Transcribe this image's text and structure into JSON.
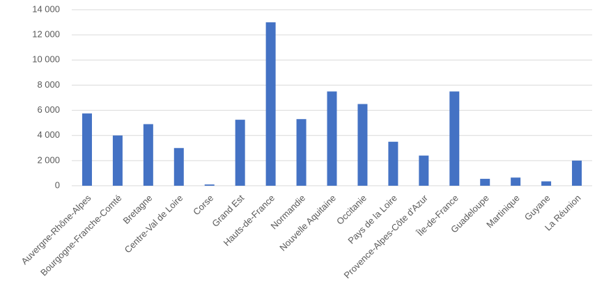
{
  "chart_data": {
    "type": "bar",
    "categories": [
      "Auvergne-Rhône-Alpes",
      "Bourgogne-Franche-Comté",
      "Bretagne",
      "Centre-Val de Loire",
      "Corse",
      "Grand Est",
      "Hauts-de-France",
      "Normandie",
      "Nouvelle Aquitaine",
      "Occitanie",
      "Pays de la Loire",
      "Provence-Alpes-Côte d'Azur",
      "Île-de-France",
      "Guadeloupe",
      "Martinique",
      "Guyane",
      "La Réunion"
    ],
    "values": [
      5750,
      4000,
      4900,
      3000,
      100,
      5250,
      13000,
      5300,
      7500,
      6500,
      3500,
      2400,
      7500,
      550,
      650,
      350,
      2000
    ],
    "color": "#4472c4",
    "ylim": [
      0,
      14000
    ],
    "yticks": [
      0,
      {
        "value": 2000,
        "label": "2 000"
      },
      {
        "value": 4000,
        "label": "4 000"
      },
      {
        "value": 6000,
        "label": "6 000"
      },
      {
        "value": 8000,
        "label": "8 000"
      },
      {
        "value": 10000,
        "label": "10 000"
      },
      {
        "value": 12000,
        "label": "12 000"
      },
      {
        "value": 14000,
        "label": "14 000"
      }
    ],
    "grid": true
  }
}
